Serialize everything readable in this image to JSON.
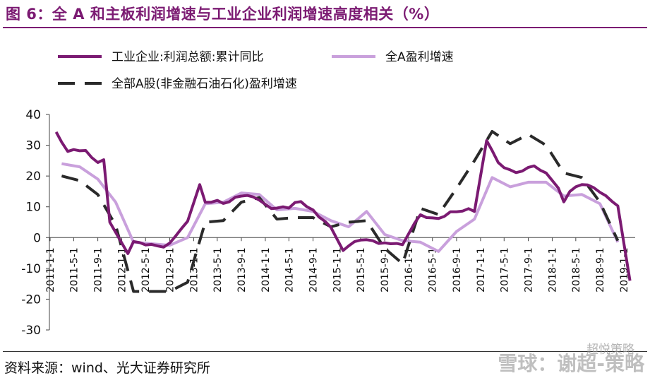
{
  "header": {
    "title": "图 6：全 A 和主板利润增速与工业企业利润增速高度相关（%）"
  },
  "footer": {
    "source": "资料来源：wind、光大证券研究所",
    "watermark": "雪球：谢超-策略",
    "watermark_sub": "超悦策略"
  },
  "chart_data": {
    "type": "line",
    "title": "",
    "xlabel": "",
    "ylabel": "",
    "ylim": [
      -30,
      40
    ],
    "yticks": [
      40,
      30,
      20,
      10,
      0,
      -10,
      -20,
      -30
    ],
    "grid": false,
    "legend_position": "top-left",
    "x_labels": [
      "2011-1-1",
      "2011-5-1",
      "2011-9-1",
      "2012-1-1",
      "2012-5-1",
      "2012-9-1",
      "2013-1-1",
      "2013-5-1",
      "2013-9-1",
      "2014-1-1",
      "2014-5-1",
      "2014-9-1",
      "2015-1-1",
      "2015-5-1",
      "2015-9-1",
      "2016-1-1",
      "2016-5-1",
      "2016-9-1",
      "2017-1-1",
      "2017-5-1",
      "2017-9-1",
      "2018-1-1",
      "2018-5-1",
      "2018-9-1",
      "2019-1-1"
    ],
    "series": [
      {
        "name": "工业企业:利润总额:累计同比",
        "color": "#7b1a72",
        "dash": "solid",
        "points": [
          [
            "2011-02-01",
            34.3
          ],
          [
            "2011-03-01",
            31.0
          ],
          [
            "2011-04-01",
            28.0
          ],
          [
            "2011-05-01",
            28.6
          ],
          [
            "2011-06-01",
            28.2
          ],
          [
            "2011-07-01",
            28.3
          ],
          [
            "2011-08-01",
            26.0
          ],
          [
            "2011-09-01",
            24.4
          ],
          [
            "2011-10-01",
            25.3
          ],
          [
            "2011-11-01",
            5.0
          ],
          [
            "2012-02-01",
            -5.2
          ],
          [
            "2012-03-01",
            -1.3
          ],
          [
            "2012-04-01",
            -1.6
          ],
          [
            "2012-05-01",
            -2.4
          ],
          [
            "2012-06-01",
            -2.2
          ],
          [
            "2012-07-01",
            -2.7
          ],
          [
            "2012-08-01",
            -3.1
          ],
          [
            "2012-09-01",
            -1.8
          ],
          [
            "2012-10-01",
            0.5
          ],
          [
            "2012-11-01",
            3.0
          ],
          [
            "2012-12-01",
            5.3
          ],
          [
            "2013-02-01",
            17.2
          ],
          [
            "2013-03-01",
            11.5
          ],
          [
            "2013-04-01",
            11.5
          ],
          [
            "2013-05-01",
            12.1
          ],
          [
            "2013-06-01",
            11.1
          ],
          [
            "2013-07-01",
            11.6
          ],
          [
            "2013-08-01",
            13.1
          ],
          [
            "2013-09-01",
            13.5
          ],
          [
            "2013-10-01",
            13.7
          ],
          [
            "2013-11-01",
            13.2
          ],
          [
            "2013-12-01",
            12.2
          ],
          [
            "2014-02-01",
            9.4
          ],
          [
            "2014-03-01",
            9.6
          ],
          [
            "2014-04-01",
            10.0
          ],
          [
            "2014-05-01",
            9.6
          ],
          [
            "2014-06-01",
            11.4
          ],
          [
            "2014-07-01",
            11.7
          ],
          [
            "2014-08-01",
            10.0
          ],
          [
            "2014-09-01",
            9.0
          ],
          [
            "2014-10-01",
            6.7
          ],
          [
            "2014-11-01",
            5.3
          ],
          [
            "2014-12-01",
            3.3
          ],
          [
            "2015-02-01",
            -4.2
          ],
          [
            "2015-03-01",
            -2.7
          ],
          [
            "2015-04-01",
            -1.3
          ],
          [
            "2015-05-01",
            -0.8
          ],
          [
            "2015-06-01",
            -0.7
          ],
          [
            "2015-07-01",
            -1.0
          ],
          [
            "2015-08-01",
            -1.9
          ],
          [
            "2015-09-01",
            -1.7
          ],
          [
            "2015-10-01",
            -2.0
          ],
          [
            "2015-11-01",
            -1.9
          ],
          [
            "2015-12-01",
            -2.3
          ],
          [
            "2016-02-01",
            4.8
          ],
          [
            "2016-03-01",
            7.4
          ],
          [
            "2016-04-01",
            6.5
          ],
          [
            "2016-05-01",
            6.4
          ],
          [
            "2016-06-01",
            6.2
          ],
          [
            "2016-07-01",
            6.9
          ],
          [
            "2016-08-01",
            8.4
          ],
          [
            "2016-09-01",
            8.4
          ],
          [
            "2016-10-01",
            8.6
          ],
          [
            "2016-11-01",
            9.4
          ],
          [
            "2016-12-01",
            8.5
          ],
          [
            "2017-02-01",
            31.5
          ],
          [
            "2017-03-01",
            28.3
          ],
          [
            "2017-04-01",
            24.4
          ],
          [
            "2017-05-01",
            22.7
          ],
          [
            "2017-06-01",
            22.0
          ],
          [
            "2017-07-01",
            21.1
          ],
          [
            "2017-08-01",
            21.6
          ],
          [
            "2017-09-01",
            22.8
          ],
          [
            "2017-10-01",
            23.3
          ],
          [
            "2017-11-01",
            21.9
          ],
          [
            "2017-12-01",
            21.0
          ],
          [
            "2018-02-01",
            16.1
          ],
          [
            "2018-03-01",
            11.6
          ],
          [
            "2018-04-01",
            15.0
          ],
          [
            "2018-05-01",
            16.5
          ],
          [
            "2018-06-01",
            17.2
          ],
          [
            "2018-07-01",
            17.1
          ],
          [
            "2018-08-01",
            16.2
          ],
          [
            "2018-09-01",
            14.7
          ],
          [
            "2018-10-01",
            13.6
          ],
          [
            "2018-11-01",
            11.8
          ],
          [
            "2018-12-01",
            10.3
          ],
          [
            "2019-02-01",
            -14.0
          ]
        ]
      },
      {
        "name": "全A盈利增速",
        "color": "#c9a0dc",
        "dash": "solid",
        "points": [
          [
            "2011-03-01",
            24.0
          ],
          [
            "2011-06-01",
            23.0
          ],
          [
            "2011-09-01",
            19.0
          ],
          [
            "2011-12-01",
            11.5
          ],
          [
            "2012-03-01",
            -1.5
          ],
          [
            "2012-06-01",
            -2.0
          ],
          [
            "2012-09-01",
            -2.5
          ],
          [
            "2012-12-01",
            0.0
          ],
          [
            "2013-03-01",
            11.0
          ],
          [
            "2013-06-01",
            11.5
          ],
          [
            "2013-09-01",
            14.5
          ],
          [
            "2013-12-01",
            14.0
          ],
          [
            "2014-03-01",
            9.0
          ],
          [
            "2014-06-01",
            9.5
          ],
          [
            "2014-09-01",
            8.5
          ],
          [
            "2014-12-01",
            5.5
          ],
          [
            "2015-03-01",
            3.5
          ],
          [
            "2015-06-01",
            8.5
          ],
          [
            "2015-09-01",
            1.0
          ],
          [
            "2015-12-01",
            -1.0
          ],
          [
            "2016-03-01",
            -1.5
          ],
          [
            "2016-06-01",
            -4.5
          ],
          [
            "2016-09-01",
            2.0
          ],
          [
            "2016-12-01",
            6.0
          ],
          [
            "2017-03-01",
            19.5
          ],
          [
            "2017-06-01",
            16.5
          ],
          [
            "2017-09-01",
            18.0
          ],
          [
            "2017-12-01",
            18.0
          ],
          [
            "2018-03-01",
            13.5
          ],
          [
            "2018-06-01",
            14.0
          ],
          [
            "2018-09-01",
            11.0
          ],
          [
            "2018-12-01",
            -1.5
          ]
        ]
      },
      {
        "name": "全部A股(非金融石油石化)盈利增速",
        "color": "#2a2a2a",
        "dash": "dashed",
        "points": [
          [
            "2011-03-01",
            20.0
          ],
          [
            "2011-06-01",
            18.5
          ],
          [
            "2011-09-01",
            14.0
          ],
          [
            "2011-12-01",
            4.0
          ],
          [
            "2012-03-01",
            -17.5
          ],
          [
            "2012-06-01",
            -17.5
          ],
          [
            "2012-09-01",
            -17.5
          ],
          [
            "2012-12-01",
            -14.5
          ],
          [
            "2013-03-01",
            5.0
          ],
          [
            "2013-06-01",
            5.5
          ],
          [
            "2013-09-01",
            11.5
          ],
          [
            "2013-12-01",
            13.0
          ],
          [
            "2014-03-01",
            6.0
          ],
          [
            "2014-06-01",
            6.5
          ],
          [
            "2014-09-01",
            6.5
          ],
          [
            "2014-12-01",
            3.5
          ],
          [
            "2015-03-01",
            5.0
          ],
          [
            "2015-06-01",
            5.5
          ],
          [
            "2015-09-01",
            -3.5
          ],
          [
            "2015-12-01",
            -8.5
          ],
          [
            "2016-03-01",
            9.5
          ],
          [
            "2016-06-01",
            7.5
          ],
          [
            "2016-09-01",
            16.0
          ],
          [
            "2016-12-01",
            25.0
          ],
          [
            "2017-03-01",
            34.5
          ],
          [
            "2017-06-01",
            30.5
          ],
          [
            "2017-09-01",
            33.5
          ],
          [
            "2017-12-01",
            30.0
          ],
          [
            "2018-03-01",
            21.0
          ],
          [
            "2018-06-01",
            19.5
          ],
          [
            "2018-09-01",
            11.5
          ],
          [
            "2018-12-01",
            -1.0
          ]
        ]
      }
    ]
  }
}
